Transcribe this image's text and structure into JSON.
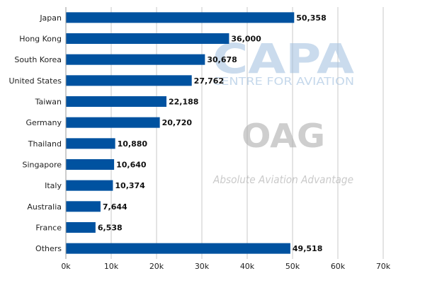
{
  "colors": {
    "bar": "#0052a0",
    "grid": "#c8c8c8",
    "capa_watermark": "#9fbfdf",
    "oag_watermark": "#b4b4b4"
  },
  "watermarks": {
    "capa_logo": "CAPA",
    "capa_tagline": "CENTRE FOR AVIATION",
    "oag_logo": "OAG",
    "oag_tagline": "Absolute Aviation Advantage"
  },
  "chart_data": {
    "type": "bar",
    "orientation": "horizontal",
    "title": "",
    "xlabel": "",
    "ylabel": "",
    "categories": [
      "Japan",
      "Hong Kong",
      "South Korea",
      "United States",
      "Taiwan",
      "Germany",
      "Thailand",
      "Singapore",
      "Italy",
      "Australia",
      "France",
      "Others"
    ],
    "values": [
      50358,
      36000,
      30678,
      27762,
      22188,
      20720,
      10880,
      10640,
      10374,
      7644,
      6538,
      49518
    ],
    "value_labels": [
      "50,358",
      "36,000",
      "30,678",
      "27,762",
      "22,188",
      "20,720",
      "10,880",
      "10,640",
      "10,374",
      "7,644",
      "6,538",
      "49,518"
    ],
    "xlim": [
      0,
      70000
    ],
    "x_ticks": [
      0,
      10000,
      20000,
      30000,
      40000,
      50000,
      60000,
      70000
    ],
    "x_tick_labels": [
      "0k",
      "10k",
      "20k",
      "30k",
      "40k",
      "50k",
      "60k",
      "70k"
    ],
    "grid": "vertical",
    "legend": "none"
  }
}
